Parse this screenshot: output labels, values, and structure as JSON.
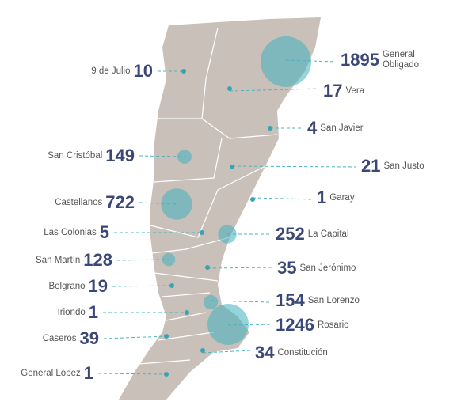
{
  "map": {
    "departments": [
      {
        "name": "9 de Julio",
        "value": 10
      },
      {
        "name": "General Obligado",
        "value": 1895
      },
      {
        "name": "Vera",
        "value": 17
      },
      {
        "name": "San Javier",
        "value": 4
      },
      {
        "name": "San Cristóbal",
        "value": 149
      },
      {
        "name": "San Justo",
        "value": 21
      },
      {
        "name": "Castellanos",
        "value": 722
      },
      {
        "name": "Garay",
        "value": 1
      },
      {
        "name": "Las Colonias",
        "value": 5
      },
      {
        "name": "La Capital",
        "value": 252
      },
      {
        "name": "San Martín",
        "value": 128
      },
      {
        "name": "San Jerónimo",
        "value": 35
      },
      {
        "name": "Belgrano",
        "value": 19
      },
      {
        "name": "San Lorenzo",
        "value": 154
      },
      {
        "name": "Iriondo",
        "value": 1
      },
      {
        "name": "Rosario",
        "value": 1246
      },
      {
        "name": "Caseros",
        "value": 39
      },
      {
        "name": "Constitución",
        "value": 34
      },
      {
        "name": "General López",
        "value": 1
      }
    ]
  }
}
